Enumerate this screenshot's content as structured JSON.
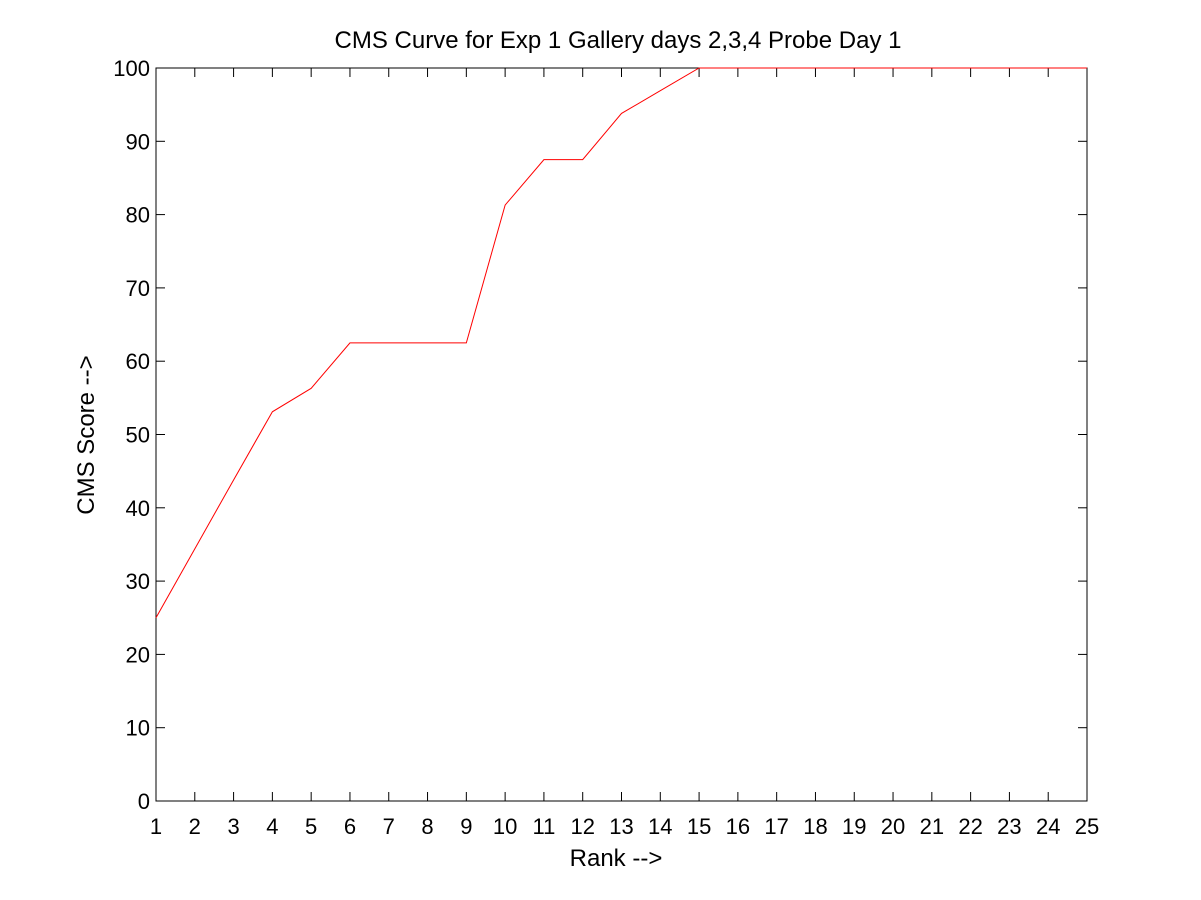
{
  "chart_data": {
    "type": "line",
    "title": "CMS Curve for Exp 1 Gallery days 2,3,4 Probe Day 1",
    "xlabel": "Rank -->",
    "ylabel": "CMS Score -->",
    "xlim": [
      1,
      25
    ],
    "ylim": [
      0,
      100
    ],
    "x_ticks": [
      1,
      2,
      3,
      4,
      5,
      6,
      7,
      8,
      9,
      10,
      11,
      12,
      13,
      14,
      15,
      16,
      17,
      18,
      19,
      20,
      21,
      22,
      23,
      24,
      25
    ],
    "y_ticks": [
      0,
      10,
      20,
      30,
      40,
      50,
      60,
      70,
      80,
      90,
      100
    ],
    "grid": false,
    "series": [
      {
        "color": "#ff0000",
        "x": [
          1,
          2,
          3,
          4,
          5,
          6,
          7,
          8,
          9,
          10,
          11,
          12,
          13,
          14,
          15,
          16,
          17,
          18,
          19,
          20,
          21,
          22,
          23,
          24,
          25
        ],
        "y": [
          25.0,
          34.4,
          43.8,
          53.1,
          56.3,
          62.5,
          62.5,
          62.5,
          62.5,
          81.3,
          87.5,
          87.5,
          93.8,
          96.9,
          100,
          100,
          100,
          100,
          100,
          100,
          100,
          100,
          100,
          100,
          100
        ]
      }
    ]
  }
}
